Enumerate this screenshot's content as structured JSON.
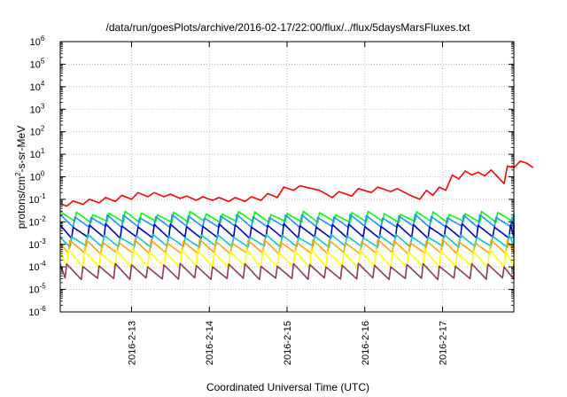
{
  "chart_data": {
    "type": "line",
    "title": "/data/run/goesPlots/archive/2016-02-17/22:00/flux/../flux/5daysMarsFluxes.txt",
    "xlabel": "Coordinated Universal Time (UTC)",
    "ylabel": "protons/cm²-s-sr-MeV",
    "y_scale": "log",
    "ylim": [
      1e-06,
      1000000.0
    ],
    "y_ticks": [
      {
        "base": "10",
        "exp": "-6"
      },
      {
        "base": "10",
        "exp": "-5"
      },
      {
        "base": "10",
        "exp": "-4"
      },
      {
        "base": "10",
        "exp": "-3"
      },
      {
        "base": "10",
        "exp": "-2"
      },
      {
        "base": "10",
        "exp": "-1"
      },
      {
        "base": "10",
        "exp": "0"
      },
      {
        "base": "10",
        "exp": "1"
      },
      {
        "base": "10",
        "exp": "2"
      },
      {
        "base": "10",
        "exp": "3"
      },
      {
        "base": "10",
        "exp": "4"
      },
      {
        "base": "10",
        "exp": "5"
      },
      {
        "base": "10",
        "exp": "6"
      }
    ],
    "xlim": [
      "2016-02-12 02:00",
      "2016-02-17 22:00"
    ],
    "x_ticks": [
      "2016-2-13",
      "2016-2-14",
      "2016-2-15",
      "2016-2-16",
      "2016-2-17"
    ],
    "grid": true,
    "series": [
      {
        "color": "#ff0000",
        "values": [
          [
            "2016-02-12 02:00",
            0.065
          ],
          [
            "2016-02-12 04:00",
            0.05
          ],
          [
            "2016-02-12 06:00",
            0.085
          ],
          [
            "2016-02-12 09:00",
            0.06
          ],
          [
            "2016-02-12 11:00",
            0.1
          ],
          [
            "2016-02-12 14:00",
            0.07
          ],
          [
            "2016-02-12 16:00",
            0.12
          ],
          [
            "2016-02-12 19:00",
            0.08
          ],
          [
            "2016-02-12 21:00",
            0.15
          ],
          [
            "2016-02-13 00:00",
            0.1
          ],
          [
            "2016-02-13 02:00",
            0.2
          ],
          [
            "2016-02-13 05:00",
            0.13
          ],
          [
            "2016-02-13 07:00",
            0.2
          ],
          [
            "2016-02-13 10:00",
            0.13
          ],
          [
            "2016-02-13 12:00",
            0.17
          ],
          [
            "2016-02-13 15:00",
            0.11
          ],
          [
            "2016-02-13 17:00",
            0.14
          ],
          [
            "2016-02-13 20:00",
            0.09
          ],
          [
            "2016-02-13 22:00",
            0.13
          ],
          [
            "2016-02-14 01:00",
            0.09
          ],
          [
            "2016-02-14 03:00",
            0.12
          ],
          [
            "2016-02-14 06:00",
            0.08
          ],
          [
            "2016-02-14 08:00",
            0.12
          ],
          [
            "2016-02-14 11:00",
            0.08
          ],
          [
            "2016-02-14 13:00",
            0.13
          ],
          [
            "2016-02-14 16:00",
            0.09
          ],
          [
            "2016-02-14 18:00",
            0.18
          ],
          [
            "2016-02-14 21:00",
            0.12
          ],
          [
            "2016-02-14 23:00",
            0.35
          ],
          [
            "2016-02-15 02:00",
            0.25
          ],
          [
            "2016-02-15 04:00",
            0.4
          ],
          [
            "2016-02-15 10:00",
            0.25
          ],
          [
            "2016-02-15 14:00",
            0.12
          ],
          [
            "2016-02-15 16:00",
            0.22
          ],
          [
            "2016-02-15 20:00",
            0.14
          ],
          [
            "2016-02-15 22:00",
            0.3
          ],
          [
            "2016-02-16 02:00",
            0.2
          ],
          [
            "2016-02-16 04:00",
            0.35
          ],
          [
            "2016-02-16 08:00",
            0.22
          ],
          [
            "2016-02-16 10:00",
            0.3
          ],
          [
            "2016-02-16 14:00",
            0.15
          ],
          [
            "2016-02-16 17:00",
            0.1
          ],
          [
            "2016-02-16 19:00",
            0.25
          ],
          [
            "2016-02-16 21:00",
            0.15
          ],
          [
            "2016-02-16 23:00",
            0.35
          ],
          [
            "2016-02-17 01:00",
            0.25
          ],
          [
            "2016-02-17 03:00",
            1.2
          ],
          [
            "2016-02-17 05:00",
            0.8
          ],
          [
            "2016-02-17 07:00",
            1.8
          ],
          [
            "2016-02-17 09:00",
            1.2
          ],
          [
            "2016-02-17 11:00",
            1.6
          ],
          [
            "2016-02-17 13:00",
            1.1
          ],
          [
            "2016-02-17 15:00",
            2.0
          ],
          [
            "2016-02-17 19:00",
            0.5
          ],
          [
            "2016-02-17 20:00",
            3.0
          ],
          [
            "2016-02-17 22:00",
            2.5
          ],
          [
            "2016-02-18 00:00",
            5.0
          ],
          [
            "2016-02-18 02:00",
            4.0
          ],
          [
            "2016-02-18 04:00",
            2.5
          ]
        ]
      },
      {
        "color": "#00ff00",
        "sawtooth": {
          "base": 0.01,
          "ratio": 2.5,
          "phase": 0
        }
      },
      {
        "color": "#1e90ff",
        "sawtooth": {
          "base": 0.006,
          "ratio": 3.0,
          "phase": 0.1
        }
      },
      {
        "color": "#0000cd",
        "sawtooth": {
          "base": 0.002,
          "ratio": 3.5,
          "phase": 0.2
        }
      },
      {
        "color": "#00ced1",
        "sawtooth": {
          "base": 0.0008,
          "ratio": 3.0,
          "phase": 0.3
        }
      },
      {
        "color": "#ffa500",
        "sawtooth": {
          "base": 0.0004,
          "ratio": 3.5,
          "phase": 0.4
        }
      },
      {
        "color": "#ffff00",
        "sawtooth": {
          "base": 0.0001,
          "ratio": 5.0,
          "phase": 0.5
        }
      },
      {
        "color": "#8b3a62",
        "sawtooth": {
          "base": 3e-05,
          "ratio": 4.0,
          "phase": 0.6
        }
      }
    ],
    "sawtooth_period_hours": 5
  }
}
